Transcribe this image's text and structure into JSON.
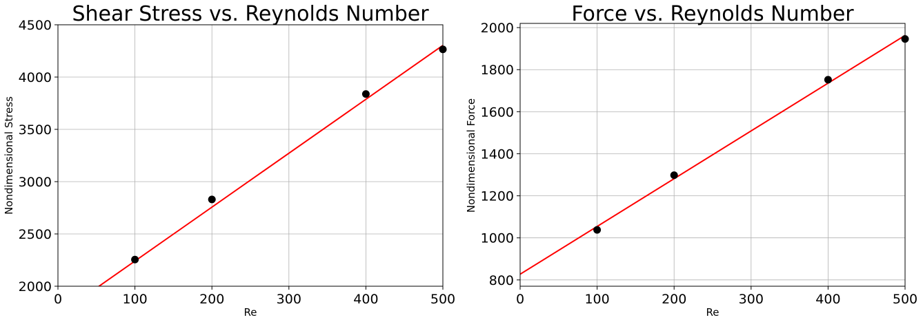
{
  "chart_data": [
    {
      "type": "scatter",
      "title": "Shear Stress vs. Reynolds Number",
      "xlabel": "Re",
      "ylabel": "Nondimensional Stress",
      "xlim": [
        0,
        500
      ],
      "ylim": [
        2000,
        4500
      ],
      "xticks": [
        "0",
        "100",
        "200",
        "300",
        "400",
        "500"
      ],
      "yticks": [
        "2000",
        "2500",
        "3000",
        "3500",
        "4000",
        "4500"
      ],
      "grid": true,
      "series": [
        {
          "type": "scatter",
          "color": "#000000",
          "x": [
            100,
            200,
            400,
            500
          ],
          "y": [
            2255,
            2830,
            3838,
            4265
          ]
        },
        {
          "type": "line",
          "color": "#ff0000",
          "x": [
            0,
            500
          ],
          "y": [
            1725,
            4303
          ]
        }
      ]
    },
    {
      "type": "scatter",
      "title": "Force vs. Reynolds Number",
      "xlabel": "Re",
      "ylabel": "Nondimensional Force",
      "xlim": [
        0,
        500
      ],
      "ylim": [
        770,
        2020
      ],
      "xticks": [
        "0",
        "100",
        "200",
        "300",
        "400",
        "500"
      ],
      "yticks": [
        "800",
        "1000",
        "1200",
        "1400",
        "1600",
        "1800",
        "2000"
      ],
      "grid": true,
      "series": [
        {
          "type": "scatter",
          "color": "#000000",
          "x": [
            100,
            200,
            400,
            500
          ],
          "y": [
            1038,
            1298,
            1752,
            1946
          ]
        },
        {
          "type": "line",
          "color": "#ff0000",
          "x": [
            0,
            500
          ],
          "y": [
            827,
            1963
          ]
        }
      ]
    }
  ]
}
